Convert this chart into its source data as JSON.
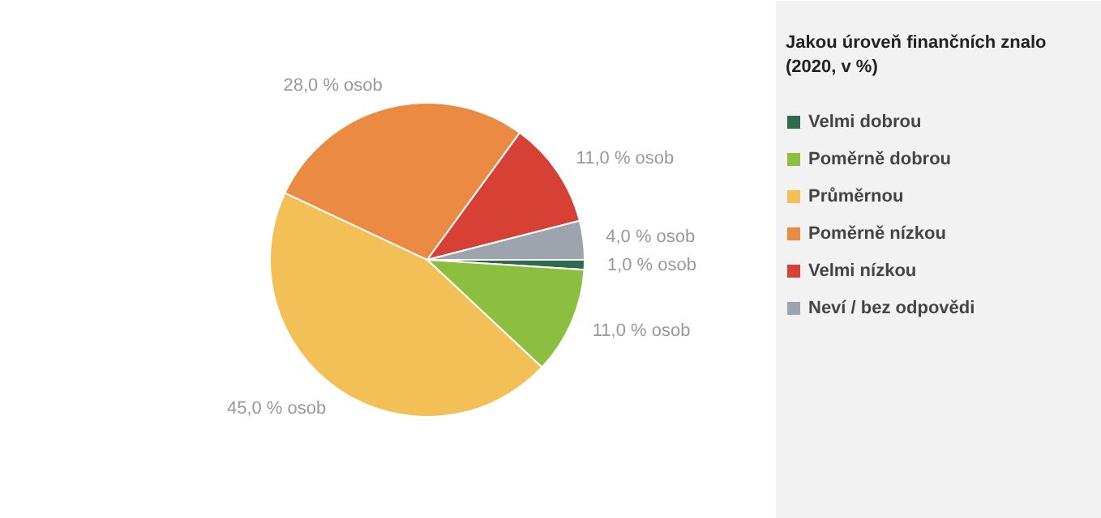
{
  "chart_data": {
    "type": "pie",
    "legend_title": "Jakou úroveň finančních znalo\n(2020, v %)",
    "categories": [
      "Velmi dobrou",
      "Poměrně dobrou",
      "Průměrnou",
      "Poměrně nízkou",
      "Velmi nízkou",
      "Neví / bez odpovědi"
    ],
    "values": [
      1,
      11,
      45,
      28,
      11,
      4
    ],
    "colors": [
      "#2e6b4e",
      "#8cbf3f",
      "#f2c057",
      "#ea8a43",
      "#d74135",
      "#9ea4ae"
    ],
    "value_labels": [
      "1,0 % osob",
      "11,0 % osob",
      "45,0 % osob",
      "28,0 % osob",
      "11,0 % osob",
      "4,0 % osob"
    ],
    "legend": "right"
  }
}
